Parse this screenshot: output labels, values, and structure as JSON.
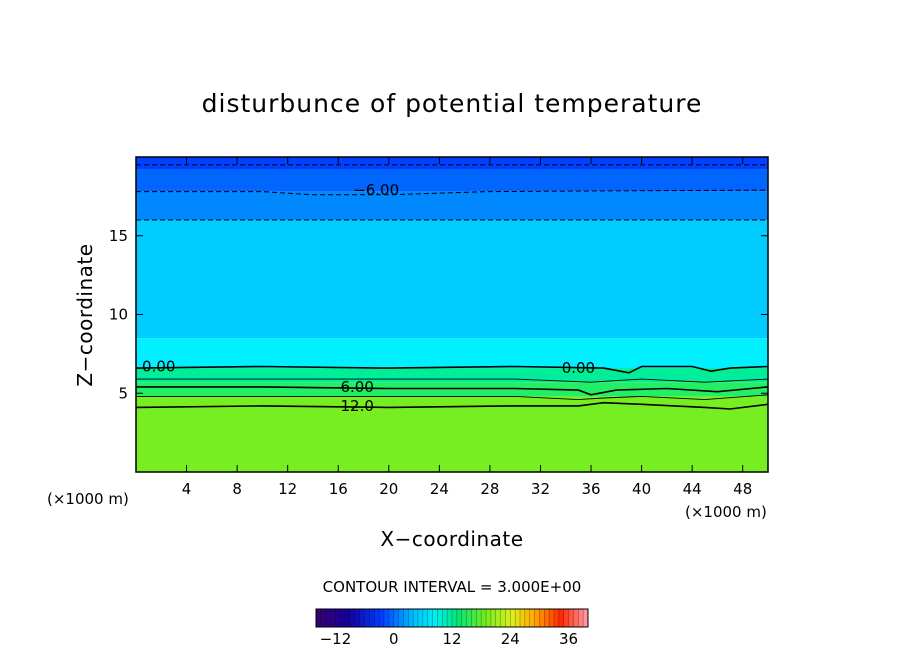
{
  "chart_data": {
    "type": "heatmap",
    "title": "disturbunce of potential temperature",
    "xlabel": "X−coordinate",
    "ylabel": "Z−coordinate",
    "x_unit": "(×1000 m)",
    "y_unit": "(×1000 m)",
    "xlim": [
      0,
      50
    ],
    "ylim": [
      0,
      20
    ],
    "x_ticks": [
      4,
      8,
      12,
      16,
      20,
      24,
      28,
      32,
      36,
      40,
      44,
      48
    ],
    "y_ticks": [
      5,
      10,
      15
    ],
    "contour_interval_text": "CONTOUR INTERVAL = 3.000E+00",
    "contour_labels": [
      {
        "text": "−6.00",
        "x": 19,
        "z": 17.9
      },
      {
        "text": "0.00",
        "x": 1.8,
        "z": 6.7
      },
      {
        "text": "0.00",
        "x": 35,
        "z": 6.6
      },
      {
        "text": "6.00",
        "x": 17.5,
        "z": 5.4
      },
      {
        "text": "12.0",
        "x": 17.5,
        "z": 4.2
      }
    ],
    "colorbar": {
      "range": [
        -16,
        40
      ],
      "tick_values": [
        -12,
        0,
        12,
        24,
        36
      ],
      "tick_labels": [
        "−12",
        "0",
        "12",
        "24",
        "36"
      ]
    },
    "field_bands": [
      {
        "z_top": 20,
        "z_bottom": 19.2,
        "value": -12,
        "color": "#0040ff"
      },
      {
        "z_top": 19.2,
        "z_bottom": 17.8,
        "value": -8,
        "color": "#0066ff"
      },
      {
        "z_top": 17.8,
        "z_bottom": 16,
        "value": -5,
        "color": "#0088ff"
      },
      {
        "z_top": 16,
        "z_bottom": 8.5,
        "value": -2,
        "color": "#00ccff"
      },
      {
        "z_top": 8.5,
        "z_bottom": 6.6,
        "value": 1,
        "color": "#00f0ff"
      },
      {
        "z_top": 6.6,
        "z_bottom": 5.7,
        "value": 3,
        "color": "#00ee99"
      },
      {
        "z_top": 5.7,
        "z_bottom": 4.8,
        "value": 7,
        "color": "#22ee66"
      },
      {
        "z_top": 4.8,
        "z_bottom": 0,
        "value": 14,
        "color": "#77ee22"
      }
    ],
    "contours": [
      {
        "value": -9,
        "style": "dashed",
        "points": [
          [
            0,
            19.5
          ],
          [
            50,
            19.5
          ]
        ]
      },
      {
        "value": -6,
        "style": "dashed",
        "points": [
          [
            0,
            17.8
          ],
          [
            10,
            17.8
          ],
          [
            14,
            17.6
          ],
          [
            20,
            17.6
          ],
          [
            28,
            17.8
          ],
          [
            50,
            17.9
          ]
        ]
      },
      {
        "value": -3,
        "style": "dashed",
        "points": [
          [
            0,
            16
          ],
          [
            50,
            16
          ]
        ]
      },
      {
        "value": 0,
        "style": "solid",
        "points": [
          [
            0,
            6.6
          ],
          [
            10,
            6.7
          ],
          [
            20,
            6.6
          ],
          [
            30,
            6.7
          ],
          [
            37,
            6.6
          ],
          [
            39,
            6.3
          ],
          [
            40,
            6.7
          ],
          [
            44,
            6.7
          ],
          [
            45.5,
            6.4
          ],
          [
            47,
            6.6
          ],
          [
            50,
            6.7
          ]
        ]
      },
      {
        "value": 3,
        "style": "solid",
        "points": [
          [
            0,
            5.9
          ],
          [
            10,
            5.9
          ],
          [
            20,
            5.9
          ],
          [
            30,
            5.9
          ],
          [
            36,
            5.7
          ],
          [
            38,
            5.8
          ],
          [
            40,
            5.9
          ],
          [
            45,
            5.7
          ],
          [
            50,
            5.9
          ]
        ]
      },
      {
        "value": 6,
        "style": "solid",
        "points": [
          [
            0,
            5.4
          ],
          [
            10,
            5.4
          ],
          [
            20,
            5.3
          ],
          [
            30,
            5.3
          ],
          [
            35,
            5.2
          ],
          [
            36,
            4.9
          ],
          [
            38,
            5.2
          ],
          [
            42,
            5.3
          ],
          [
            46,
            5.1
          ],
          [
            50,
            5.4
          ]
        ]
      },
      {
        "value": 9,
        "style": "solid",
        "points": [
          [
            0,
            4.8
          ],
          [
            10,
            4.8
          ],
          [
            20,
            4.8
          ],
          [
            30,
            4.8
          ],
          [
            35,
            4.6
          ],
          [
            37,
            4.7
          ],
          [
            40,
            4.8
          ],
          [
            45,
            4.6
          ],
          [
            50,
            4.9
          ]
        ]
      },
      {
        "value": 12,
        "style": "solid",
        "points": [
          [
            0,
            4.1
          ],
          [
            10,
            4.2
          ],
          [
            20,
            4.1
          ],
          [
            30,
            4.2
          ],
          [
            35,
            4.2
          ],
          [
            37,
            4.4
          ],
          [
            40,
            4.3
          ],
          [
            45,
            4.1
          ],
          [
            47,
            4.0
          ],
          [
            50,
            4.3
          ]
        ]
      }
    ]
  }
}
